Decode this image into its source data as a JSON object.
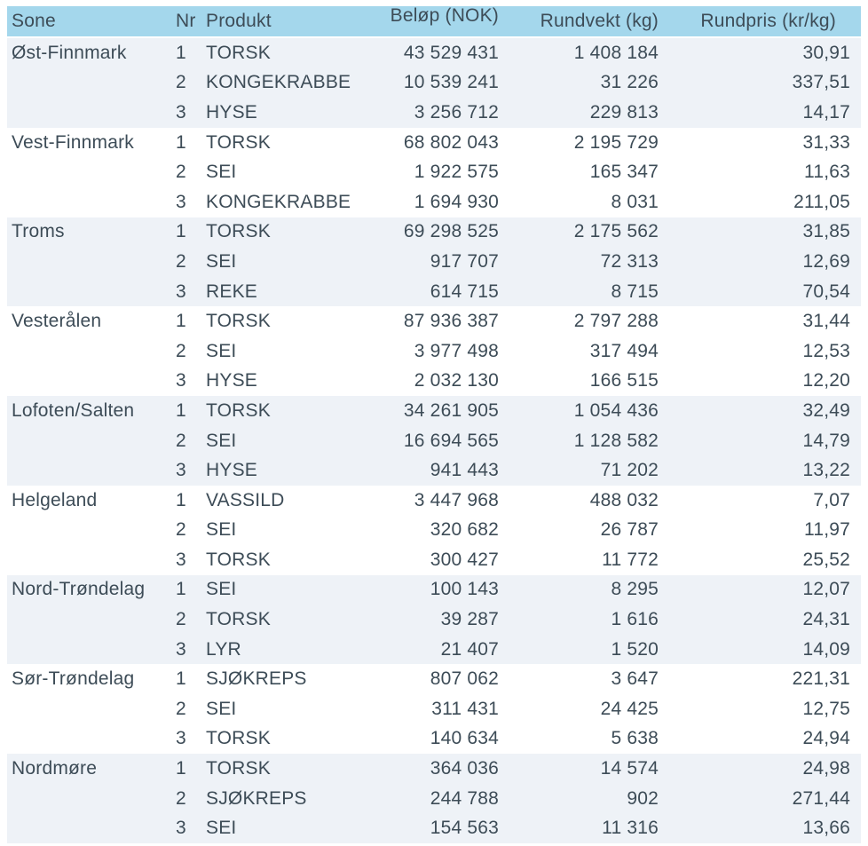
{
  "colors": {
    "header_bg": "#a4d7ec",
    "stripe_bg": "#eef2f7",
    "text": "#3d4c57"
  },
  "chart_data": {
    "type": "table",
    "title": "",
    "columns": [
      "Sone",
      "Nr",
      "Produkt",
      "Beløp (NOK)",
      "Rundvekt (kg)",
      "Rundpris (kr/kg)"
    ],
    "groups": [
      {
        "zone": "Øst-Finnmark",
        "rows": [
          {
            "nr": "1",
            "produkt": "TORSK",
            "belop": "43 529 431",
            "rundvekt": "1 408 184",
            "rundpris": "30,91"
          },
          {
            "nr": "2",
            "produkt": "KONGEKRABBE",
            "belop": "10 539 241",
            "rundvekt": "31 226",
            "rundpris": "337,51"
          },
          {
            "nr": "3",
            "produkt": "HYSE",
            "belop": "3 256 712",
            "rundvekt": "229 813",
            "rundpris": "14,17"
          }
        ]
      },
      {
        "zone": "Vest-Finnmark",
        "rows": [
          {
            "nr": "1",
            "produkt": "TORSK",
            "belop": "68 802 043",
            "rundvekt": "2 195 729",
            "rundpris": "31,33"
          },
          {
            "nr": "2",
            "produkt": "SEI",
            "belop": "1 922 575",
            "rundvekt": "165 347",
            "rundpris": "11,63"
          },
          {
            "nr": "3",
            "produkt": "KONGEKRABBE",
            "belop": "1 694 930",
            "rundvekt": "8 031",
            "rundpris": "211,05"
          }
        ]
      },
      {
        "zone": "Troms",
        "rows": [
          {
            "nr": "1",
            "produkt": "TORSK",
            "belop": "69 298 525",
            "rundvekt": "2 175 562",
            "rundpris": "31,85"
          },
          {
            "nr": "2",
            "produkt": "SEI",
            "belop": "917 707",
            "rundvekt": "72 313",
            "rundpris": "12,69"
          },
          {
            "nr": "3",
            "produkt": "REKE",
            "belop": "614 715",
            "rundvekt": "8 715",
            "rundpris": "70,54"
          }
        ]
      },
      {
        "zone": "Vesterålen",
        "rows": [
          {
            "nr": "1",
            "produkt": "TORSK",
            "belop": "87 936 387",
            "rundvekt": "2 797 288",
            "rundpris": "31,44"
          },
          {
            "nr": "2",
            "produkt": "SEI",
            "belop": "3 977 498",
            "rundvekt": "317 494",
            "rundpris": "12,53"
          },
          {
            "nr": "3",
            "produkt": "HYSE",
            "belop": "2 032 130",
            "rundvekt": "166 515",
            "rundpris": "12,20"
          }
        ]
      },
      {
        "zone": "Lofoten/Salten",
        "rows": [
          {
            "nr": "1",
            "produkt": "TORSK",
            "belop": "34 261 905",
            "rundvekt": "1 054 436",
            "rundpris": "32,49"
          },
          {
            "nr": "2",
            "produkt": "SEI",
            "belop": "16 694 565",
            "rundvekt": "1 128 582",
            "rundpris": "14,79"
          },
          {
            "nr": "3",
            "produkt": "HYSE",
            "belop": "941 443",
            "rundvekt": "71 202",
            "rundpris": "13,22"
          }
        ]
      },
      {
        "zone": "Helgeland",
        "rows": [
          {
            "nr": "1",
            "produkt": "VASSILD",
            "belop": "3 447 968",
            "rundvekt": "488 032",
            "rundpris": "7,07"
          },
          {
            "nr": "2",
            "produkt": "SEI",
            "belop": "320 682",
            "rundvekt": "26 787",
            "rundpris": "11,97"
          },
          {
            "nr": "3",
            "produkt": "TORSK",
            "belop": "300 427",
            "rundvekt": "11 772",
            "rundpris": "25,52"
          }
        ]
      },
      {
        "zone": "Nord-Trøndelag",
        "rows": [
          {
            "nr": "1",
            "produkt": "SEI",
            "belop": "100 143",
            "rundvekt": "8 295",
            "rundpris": "12,07"
          },
          {
            "nr": "2",
            "produkt": "TORSK",
            "belop": "39 287",
            "rundvekt": "1 616",
            "rundpris": "24,31"
          },
          {
            "nr": "3",
            "produkt": "LYR",
            "belop": "21 407",
            "rundvekt": "1 520",
            "rundpris": "14,09"
          }
        ]
      },
      {
        "zone": "Sør-Trøndelag",
        "rows": [
          {
            "nr": "1",
            "produkt": "SJØKREPS",
            "belop": "807 062",
            "rundvekt": "3 647",
            "rundpris": "221,31"
          },
          {
            "nr": "2",
            "produkt": "SEI",
            "belop": "311 431",
            "rundvekt": "24 425",
            "rundpris": "12,75"
          },
          {
            "nr": "3",
            "produkt": "TORSK",
            "belop": "140 634",
            "rundvekt": "5 638",
            "rundpris": "24,94"
          }
        ]
      },
      {
        "zone": "Nordmøre",
        "rows": [
          {
            "nr": "1",
            "produkt": "TORSK",
            "belop": "364 036",
            "rundvekt": "14 574",
            "rundpris": "24,98"
          },
          {
            "nr": "2",
            "produkt": "SJØKREPS",
            "belop": "244 788",
            "rundvekt": "902",
            "rundpris": "271,44"
          },
          {
            "nr": "3",
            "produkt": "SEI",
            "belop": "154 563",
            "rundvekt": "11 316",
            "rundpris": "13,66"
          }
        ]
      }
    ]
  }
}
